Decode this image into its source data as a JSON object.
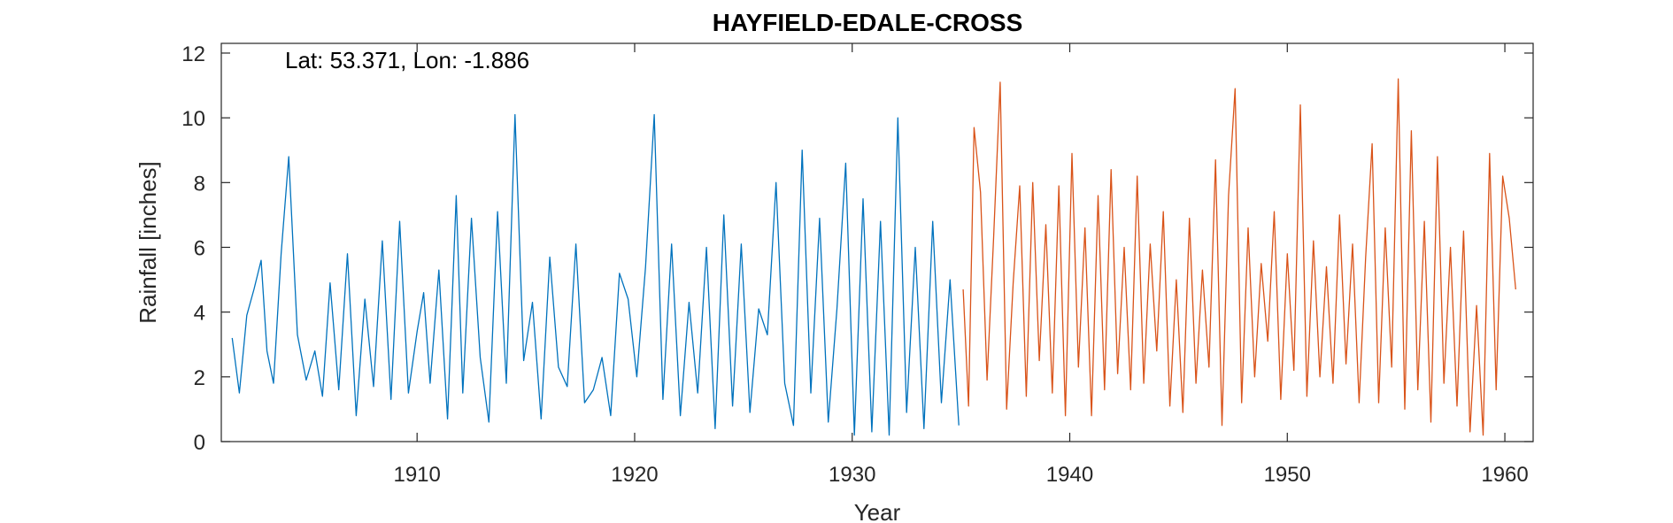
{
  "chart_data": {
    "type": "line",
    "title": "HAYFIELD-EDALE-CROSS",
    "annotation": "Lat: 53.371, Lon: -1.886",
    "xlabel": "Year",
    "ylabel": "Rainfall [inches]",
    "xlim": [
      1901,
      1961.3
    ],
    "ylim": [
      0,
      12.3
    ],
    "xticks": [
      1910,
      1920,
      1930,
      1940,
      1950,
      1960
    ],
    "yticks": [
      0,
      2,
      4,
      6,
      8,
      10,
      12
    ],
    "grid": false,
    "box": true,
    "series": [
      {
        "color": "#0072BD",
        "x": [
          1901.5,
          1901.83,
          1902.17,
          1902.5,
          1902.83,
          1903.1,
          1903.4,
          1903.75,
          1904.1,
          1904.5,
          1904.9,
          1905.3,
          1905.65,
          1906.0,
          1906.4,
          1906.8,
          1907.2,
          1907.6,
          1908.0,
          1908.4,
          1908.8,
          1909.2,
          1909.6,
          1910.0,
          1910.3,
          1910.6,
          1911.0,
          1911.4,
          1911.8,
          1912.1,
          1912.5,
          1912.9,
          1913.3,
          1913.7,
          1914.1,
          1914.5,
          1914.9,
          1915.3,
          1915.7,
          1916.1,
          1916.5,
          1916.9,
          1917.3,
          1917.7,
          1918.1,
          1918.5,
          1918.9,
          1919.3,
          1919.7,
          1920.1,
          1920.5,
          1920.9,
          1921.3,
          1921.7,
          1922.1,
          1922.5,
          1922.9,
          1923.3,
          1923.7,
          1924.1,
          1924.5,
          1924.9,
          1925.3,
          1925.7,
          1926.1,
          1926.5,
          1926.9,
          1927.3,
          1927.7,
          1928.1,
          1928.5,
          1928.9,
          1929.3,
          1929.7,
          1930.1,
          1930.5,
          1930.9,
          1931.3,
          1931.7,
          1932.1,
          1932.5,
          1932.9,
          1933.3,
          1933.7,
          1934.1,
          1934.5,
          1934.9
        ],
        "values": [
          3.2,
          1.5,
          3.9,
          4.7,
          5.6,
          2.8,
          1.8,
          5.8,
          8.8,
          3.3,
          1.9,
          2.8,
          1.4,
          4.9,
          1.6,
          5.8,
          0.8,
          4.4,
          1.7,
          6.2,
          1.3,
          6.8,
          1.5,
          3.4,
          4.6,
          1.8,
          5.3,
          0.7,
          7.6,
          1.5,
          6.9,
          2.6,
          0.6,
          7.1,
          1.8,
          10.1,
          2.5,
          4.3,
          0.7,
          5.7,
          2.3,
          1.7,
          6.1,
          1.2,
          1.6,
          2.6,
          0.8,
          5.2,
          4.4,
          2.0,
          5.4,
          10.1,
          1.3,
          6.1,
          0.8,
          4.3,
          1.5,
          6.0,
          0.4,
          7.0,
          1.1,
          6.1,
          0.9,
          4.1,
          3.3,
          8.0,
          1.8,
          0.5,
          9.0,
          1.5,
          6.9,
          0.6,
          4.1,
          8.6,
          0.2,
          7.5,
          0.3,
          6.8,
          0.2,
          10.0,
          0.9,
          6.0,
          0.4,
          6.8,
          1.2,
          5.0,
          0.5
        ]
      },
      {
        "color": "#D95319",
        "x": [
          1935.1,
          1935.35,
          1935.6,
          1935.9,
          1936.2,
          1936.5,
          1936.8,
          1937.1,
          1937.4,
          1937.7,
          1938.0,
          1938.3,
          1938.6,
          1938.9,
          1939.2,
          1939.5,
          1939.8,
          1940.1,
          1940.4,
          1940.7,
          1941.0,
          1941.3,
          1941.6,
          1941.9,
          1942.2,
          1942.5,
          1942.8,
          1943.1,
          1943.4,
          1943.7,
          1944.0,
          1944.3,
          1944.6,
          1944.9,
          1945.2,
          1945.5,
          1945.8,
          1946.1,
          1946.4,
          1946.7,
          1947.0,
          1947.3,
          1947.6,
          1947.9,
          1948.2,
          1948.5,
          1948.8,
          1949.1,
          1949.4,
          1949.7,
          1950.0,
          1950.3,
          1950.6,
          1950.9,
          1951.2,
          1951.5,
          1951.8,
          1952.1,
          1952.4,
          1952.7,
          1953.0,
          1953.3,
          1953.6,
          1953.9,
          1954.2,
          1954.5,
          1954.8,
          1955.1,
          1955.4,
          1955.7,
          1956.0,
          1956.3,
          1956.6,
          1956.9,
          1957.2,
          1957.5,
          1957.8,
          1958.1,
          1958.4,
          1958.7,
          1959.0,
          1959.3,
          1959.6,
          1959.9,
          1960.2,
          1960.5
        ],
        "values": [
          4.7,
          1.1,
          9.7,
          7.7,
          1.9,
          6.3,
          11.1,
          1.0,
          4.9,
          7.9,
          1.4,
          8.0,
          2.5,
          6.7,
          1.5,
          7.9,
          0.8,
          8.9,
          2.3,
          6.6,
          0.8,
          7.6,
          1.6,
          8.4,
          2.1,
          6.0,
          1.6,
          8.2,
          1.8,
          6.1,
          2.8,
          7.1,
          1.1,
          5.0,
          0.9,
          6.9,
          1.8,
          5.3,
          2.3,
          8.7,
          0.5,
          7.6,
          10.9,
          1.2,
          6.6,
          2.0,
          5.5,
          3.1,
          7.1,
          1.3,
          5.8,
          2.2,
          10.4,
          1.4,
          6.2,
          2.0,
          5.4,
          1.8,
          7.0,
          2.4,
          6.1,
          1.2,
          5.7,
          9.2,
          1.2,
          6.6,
          2.3,
          11.2,
          1.0,
          9.6,
          1.6,
          6.8,
          0.6,
          8.8,
          1.8,
          6.0,
          1.1,
          6.5,
          0.3,
          4.2,
          0.2,
          8.9,
          1.6,
          8.2,
          6.9,
          4.7
        ]
      }
    ]
  }
}
